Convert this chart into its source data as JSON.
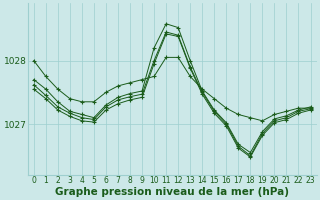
{
  "title": "Graphe pression niveau de la mer (hPa)",
  "bg_color": "#cce8e8",
  "plot_bg_color": "#cce8e8",
  "line_color": "#1a5c1a",
  "grid_color": "#9ecfcf",
  "xlim": [
    -0.5,
    23.5
  ],
  "ylim": [
    1026.2,
    1028.9
  ],
  "xticks": [
    0,
    1,
    2,
    3,
    4,
    5,
    6,
    7,
    8,
    9,
    10,
    11,
    12,
    13,
    14,
    15,
    16,
    17,
    18,
    19,
    20,
    21,
    22,
    23
  ],
  "yticks": [
    1027.0,
    1028.0
  ],
  "series": [
    [
      1028.0,
      1027.75,
      1027.55,
      1027.4,
      1027.35,
      1027.35,
      1027.5,
      1027.6,
      1027.65,
      1027.7,
      1027.75,
      1028.05,
      1028.05,
      1027.75,
      1027.55,
      1027.4,
      1027.25,
      1027.15,
      1027.1,
      1027.05,
      1027.15,
      1027.2,
      1027.25,
      1027.25
    ],
    [
      1027.7,
      1027.55,
      1027.35,
      1027.2,
      1027.15,
      1027.1,
      1027.3,
      1027.42,
      1027.48,
      1027.52,
      1028.2,
      1028.58,
      1028.52,
      1028.0,
      1027.52,
      1027.22,
      1027.02,
      1026.68,
      1026.55,
      1026.88,
      1027.08,
      1027.13,
      1027.22,
      1027.27
    ],
    [
      1027.55,
      1027.4,
      1027.22,
      1027.12,
      1027.05,
      1027.03,
      1027.22,
      1027.32,
      1027.38,
      1027.42,
      1027.95,
      1028.42,
      1028.38,
      1027.88,
      1027.47,
      1027.17,
      1026.97,
      1026.62,
      1026.48,
      1026.82,
      1027.02,
      1027.07,
      1027.17,
      1027.22
    ],
    [
      1027.62,
      1027.45,
      1027.27,
      1027.17,
      1027.1,
      1027.07,
      1027.27,
      1027.38,
      1027.43,
      1027.47,
      1028.0,
      1028.45,
      1028.4,
      1027.9,
      1027.5,
      1027.2,
      1027.0,
      1026.65,
      1026.5,
      1026.85,
      1027.05,
      1027.1,
      1027.2,
      1027.24
    ]
  ],
  "title_fontsize": 7.5,
  "tick_fontsize": 5.5,
  "linewidth": 0.7,
  "markersize": 2.5
}
